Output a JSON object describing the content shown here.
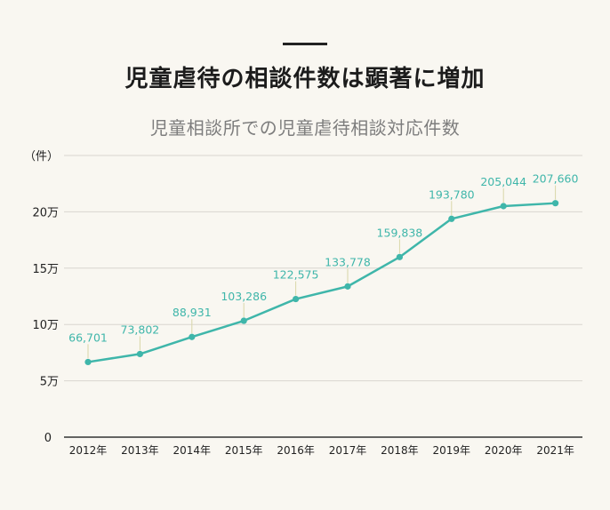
{
  "header": {
    "title": "児童虐待の相談件数は顕著に増加",
    "subtitle": "児童相談所での児童虐待相談対応件数"
  },
  "colors": {
    "line": "#3fb6aa",
    "grid": "#d9d6cf",
    "axis": "#333333",
    "background": "#f9f7f1"
  },
  "chart_data": {
    "type": "line",
    "title": "児童相談所での児童虐待相談対応件数",
    "ylabel": "（件）",
    "xlabel": "",
    "ylim": [
      0,
      250000
    ],
    "yticks": [
      0,
      50000,
      100000,
      150000,
      200000,
      250000
    ],
    "ytick_labels": [
      "0",
      "5万",
      "10万",
      "15万",
      "20万",
      "（件）"
    ],
    "categories": [
      "2012年",
      "2013年",
      "2014年",
      "2015年",
      "2016年",
      "2017年",
      "2018年",
      "2019年",
      "2020年",
      "2021年"
    ],
    "series": [
      {
        "name": "児童虐待相談対応件数",
        "values": [
          66701,
          73802,
          88931,
          103286,
          122575,
          133778,
          159838,
          193780,
          205044,
          207660
        ],
        "labels": [
          "66,701",
          "73,802",
          "88,931",
          "103,286",
          "122,575",
          "133,778",
          "159,838",
          "193,780",
          "205,044",
          "207,660"
        ]
      }
    ],
    "grid": true,
    "legend": "none"
  }
}
